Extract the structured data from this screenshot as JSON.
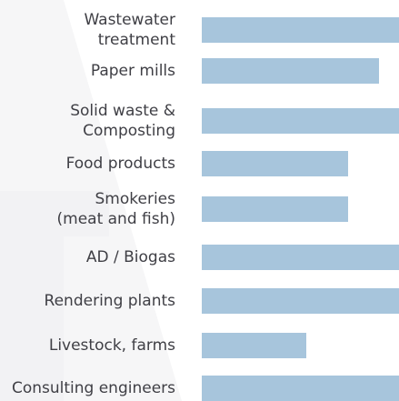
{
  "chart_data": {
    "type": "bar",
    "orientation": "horizontal",
    "categories": [
      "Wastewater\ntreatment",
      "Paper mills",
      "Solid waste &\nComposting",
      "Food products",
      "Smokeries\n(meat and  fish)",
      "AD / Biogas",
      "Rendering plants",
      "Livestock, farms",
      "Consulting engineers"
    ],
    "values": [
      100,
      90,
      100,
      74,
      74,
      100,
      100,
      53,
      100
    ],
    "xlim": [
      0,
      100
    ],
    "title": "",
    "xlabel": "",
    "ylabel": "",
    "grid": false,
    "legend": "none",
    "bar_color": "#a7c5dc",
    "text_color": "#3f3f45"
  }
}
